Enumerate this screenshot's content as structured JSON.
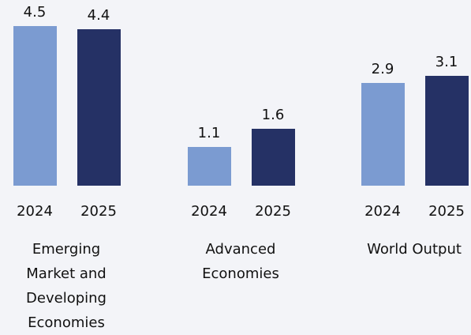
{
  "chart_data": {
    "type": "bar",
    "categories": [
      "Emerging Market and Developing Economies",
      "Advanced Economies",
      "World Output"
    ],
    "series": [
      {
        "name": "2024",
        "color": "#7b9bd1",
        "values": [
          4.5,
          1.1,
          2.9
        ]
      },
      {
        "name": "2025",
        "color": "#253165",
        "values": [
          4.4,
          1.6,
          3.1
        ]
      }
    ]
  }
}
